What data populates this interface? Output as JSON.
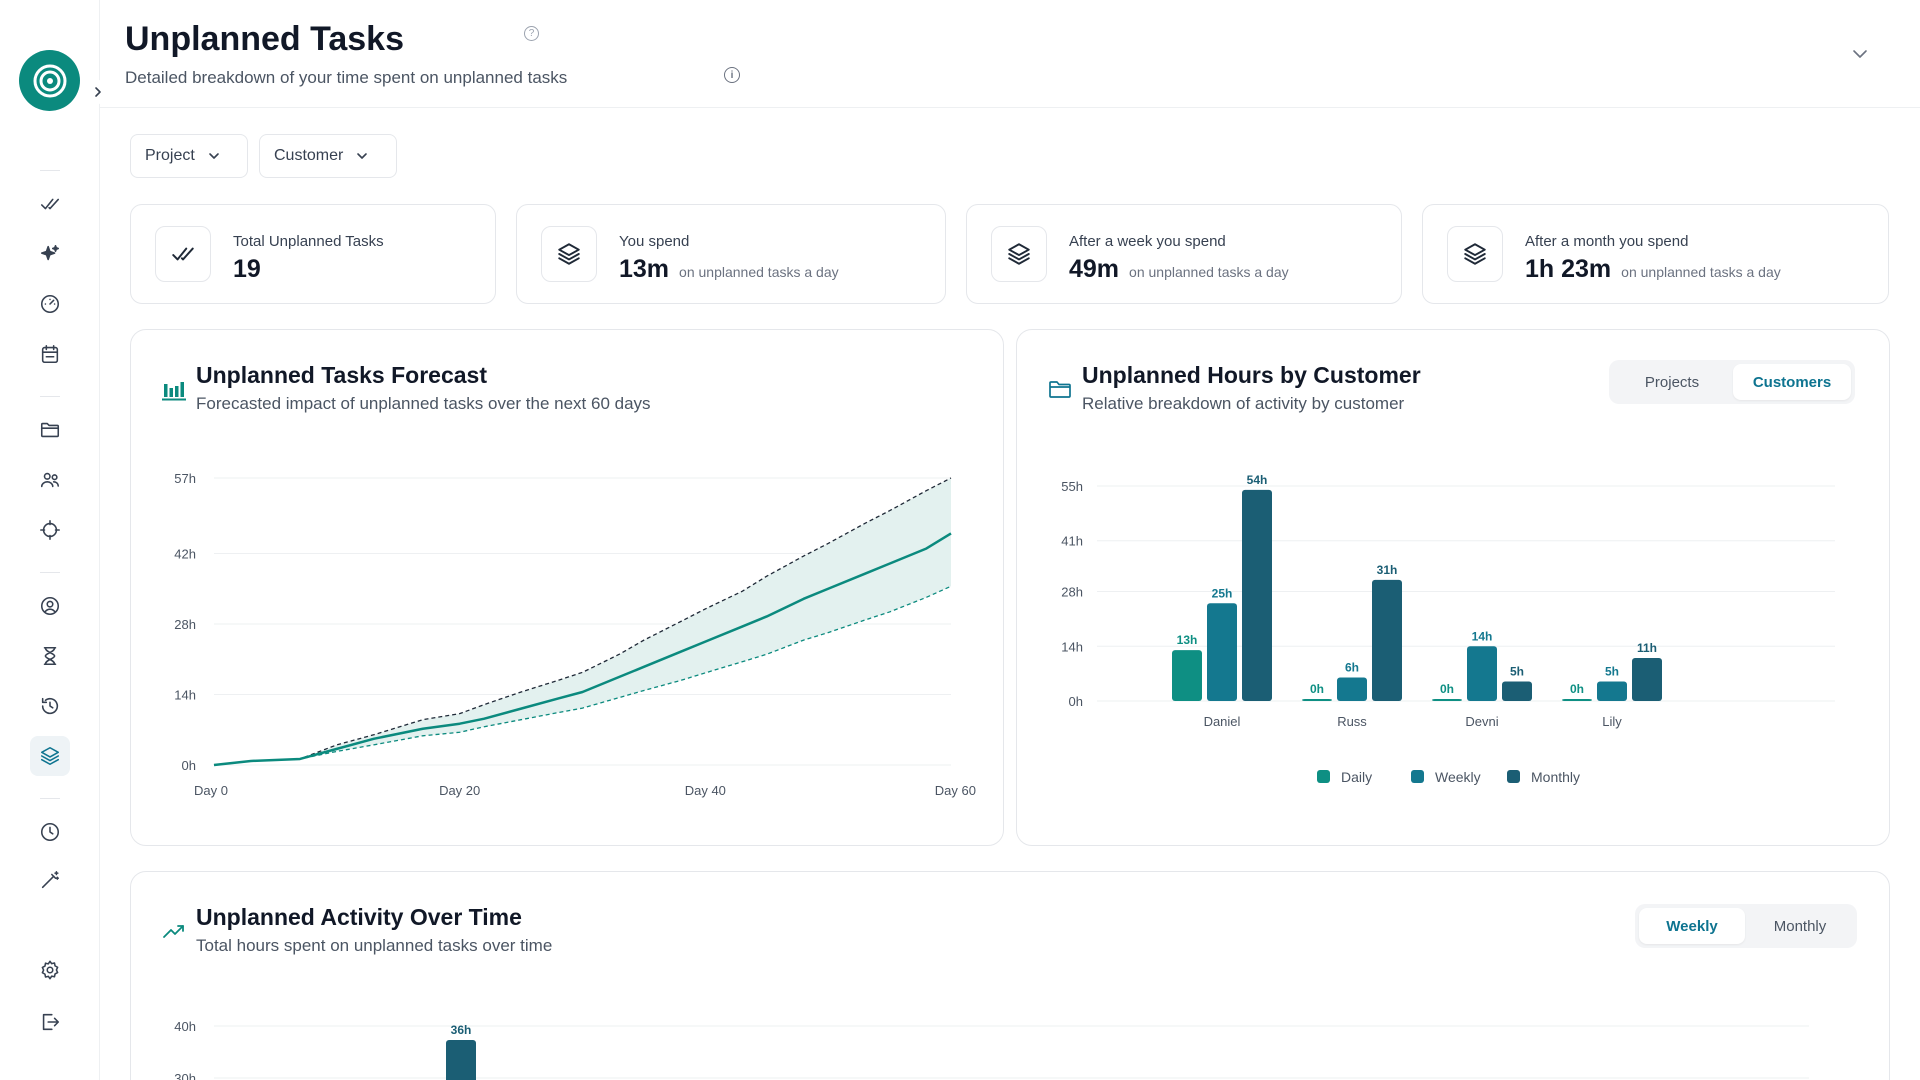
{
  "header": {
    "title": "Unplanned Tasks",
    "help_icon": "question-circle-icon",
    "subtitle": "Detailed breakdown of your time spent on unplanned tasks",
    "info_icon": "info-circle-icon"
  },
  "sidebar": {
    "items": [
      {
        "icon": "checks-icon"
      },
      {
        "icon": "sparkles-icon"
      },
      {
        "icon": "gauge-icon"
      },
      {
        "icon": "calendar-icon"
      },
      {
        "icon": "folder-icon"
      },
      {
        "icon": "users-icon"
      },
      {
        "icon": "crosshair-icon"
      },
      {
        "icon": "user-circle-icon"
      },
      {
        "icon": "hourglass-icon"
      },
      {
        "icon": "history-icon"
      },
      {
        "icon": "layers-icon",
        "active": true
      },
      {
        "icon": "clock-icon"
      },
      {
        "icon": "magic-wand-icon"
      },
      {
        "icon": "settings-icon"
      },
      {
        "icon": "logout-icon"
      }
    ]
  },
  "filters": {
    "project": "Project",
    "customer": "Customer"
  },
  "stats": [
    {
      "label": "Total Unplanned Tasks",
      "value": "19",
      "note": "",
      "icon": "checks-icon"
    },
    {
      "label": "You spend",
      "value": "13m",
      "note": "on unplanned tasks a day",
      "icon": "layers-icon"
    },
    {
      "label": "After a week you spend",
      "value": "49m",
      "note": "on unplanned tasks a day",
      "icon": "layers-icon"
    },
    {
      "label": "After a month you spend",
      "value": "1h 23m",
      "note": "on unplanned tasks a day",
      "icon": "layers-icon"
    }
  ],
  "forecast": {
    "title": "Unplanned Tasks Forecast",
    "subtitle": "Forecasted impact of unplanned tasks over the next 60 days",
    "icon": "bar-chart-icon"
  },
  "by_customer": {
    "title": "Unplanned Hours by Customer",
    "subtitle": "Relative breakdown of activity by customer",
    "icon": "folder-icon",
    "toggle": [
      "Projects",
      "Customers"
    ],
    "active_toggle": "Customers"
  },
  "activity": {
    "title": "Unplanned Activity Over Time",
    "subtitle": "Total hours spent on unplanned tasks over time",
    "icon": "trending-up-icon",
    "toggle": [
      "Weekly",
      "Monthly"
    ],
    "active_toggle": "Weekly"
  },
  "colors": {
    "accent": "#0b8a7e",
    "daily": "#0e8f83",
    "weekly": "#14788f",
    "monthly": "#1b5e74",
    "forecast_line": "#0b8a7e",
    "forecast_band": "#e3f1ef"
  },
  "chart_data": [
    {
      "type": "line",
      "title": "Unplanned Tasks Forecast",
      "x_ticks": [
        "Day 0",
        "Day 20",
        "Day 40",
        "Day 60"
      ],
      "y_ticks": [
        "0h",
        "14h",
        "28h",
        "42h",
        "57h"
      ],
      "ylim": [
        0,
        57
      ],
      "xlim": [
        0,
        60
      ],
      "series": [
        {
          "name": "",
          "role": "forecast",
          "x": [
            0,
            3,
            5,
            7,
            10,
            13,
            17,
            20,
            22,
            25,
            28,
            30,
            33,
            35,
            38,
            40,
            43,
            45,
            48,
            50,
            53,
            55,
            58,
            60
          ],
          "values": [
            0,
            0.8,
            1,
            1.2,
            3.2,
            5.2,
            7.2,
            8.2,
            9.2,
            11.2,
            13.2,
            14.5,
            17.5,
            19.5,
            22.5,
            24.5,
            27.5,
            29.5,
            33,
            35,
            38,
            40,
            43,
            46
          ]
        },
        {
          "name": "",
          "role": "upper",
          "x": [
            0,
            3,
            5,
            7,
            10,
            13,
            17,
            20,
            22,
            25,
            28,
            30,
            33,
            35,
            38,
            40,
            43,
            45,
            48,
            50,
            53,
            55,
            58,
            60
          ],
          "values": [
            0,
            0.8,
            1,
            1.2,
            4,
            6,
            9,
            10.2,
            12,
            14.5,
            16.8,
            18.4,
            22,
            24.8,
            28.5,
            31,
            34.5,
            37.5,
            41.5,
            44,
            48,
            50.5,
            54.5,
            57
          ]
        },
        {
          "name": "",
          "role": "lower",
          "x": [
            0,
            3,
            5,
            7,
            10,
            13,
            17,
            20,
            22,
            25,
            28,
            30,
            33,
            35,
            38,
            40,
            43,
            45,
            48,
            50,
            53,
            55,
            58,
            60
          ],
          "values": [
            0,
            0.8,
            1,
            1.2,
            2.7,
            4,
            5.8,
            6.5,
            7.6,
            9,
            10.4,
            11.3,
            13.4,
            14.8,
            16.8,
            18.3,
            20.5,
            22,
            24.8,
            26.3,
            28.8,
            30.4,
            33.3,
            35.5
          ]
        }
      ],
      "grid": true
    },
    {
      "type": "bar",
      "title": "Unplanned Hours by Customer",
      "categories": [
        "Daniel",
        "Russ",
        "Devni",
        "Lily"
      ],
      "y_ticks": [
        "0h",
        "14h",
        "28h",
        "41h",
        "55h"
      ],
      "ylim": [
        0,
        55
      ],
      "series": [
        {
          "name": "Daily",
          "values": [
            13,
            0,
            0,
            0
          ],
          "labels": [
            "13h",
            "0h",
            "0h",
            "0h"
          ]
        },
        {
          "name": "Weekly",
          "values": [
            25,
            6,
            14,
            5
          ],
          "labels": [
            "25h",
            "6h",
            "14h",
            "5h"
          ]
        },
        {
          "name": "Monthly",
          "values": [
            54,
            31,
            5,
            11
          ],
          "labels": [
            "54h",
            "31h",
            "5h",
            "11h"
          ]
        }
      ],
      "legend": "bottom",
      "grid": true
    },
    {
      "type": "bar",
      "title": "Unplanned Activity Over Time",
      "y_ticks": [
        "40h",
        "30h"
      ],
      "series": [
        {
          "name": "",
          "values": [
            36
          ],
          "labels": [
            "36h"
          ]
        }
      ],
      "grid": true
    }
  ]
}
